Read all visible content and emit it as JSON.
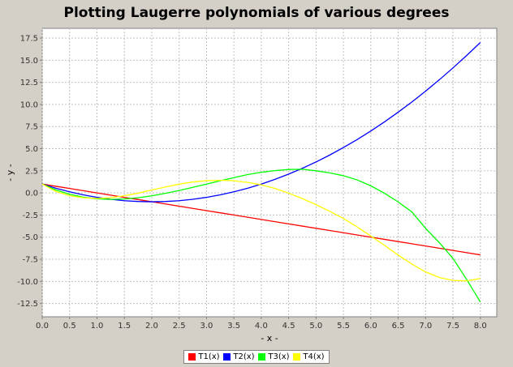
{
  "chart_data": {
    "type": "line",
    "title": "Plotting Laugerre polynomials of various degrees",
    "xlabel": "- x -",
    "ylabel": "- y -",
    "xlim": [
      0.0,
      8.3
    ],
    "ylim": [
      -14.0,
      18.6
    ],
    "x_ticks": [
      "0.0",
      "0.5",
      "1.0",
      "1.5",
      "2.0",
      "2.5",
      "3.0",
      "3.5",
      "4.0",
      "4.5",
      "5.0",
      "5.5",
      "6.0",
      "6.5",
      "7.0",
      "7.5",
      "8.0"
    ],
    "y_ticks": [
      "17.5",
      "15.0",
      "12.5",
      "10.0",
      "7.5",
      "5.0",
      "2.5",
      "0.0",
      "-2.5",
      "-5.0",
      "-7.5",
      "-10.0",
      "-12.5"
    ],
    "grid": true,
    "legend_position": "bottom",
    "x": [
      0.0,
      0.25,
      0.5,
      0.75,
      1.0,
      1.25,
      1.5,
      1.75,
      2.0,
      2.25,
      2.5,
      2.75,
      3.0,
      3.25,
      3.5,
      3.75,
      4.0,
      4.25,
      4.5,
      4.75,
      5.0,
      5.25,
      5.5,
      5.75,
      6.0,
      6.25,
      6.5,
      6.75,
      7.0,
      7.25,
      7.5,
      7.75,
      8.0
    ],
    "series": [
      {
        "name": "T1(x)",
        "color": "#ff0000",
        "values": [
          1.0,
          0.75,
          0.5,
          0.25,
          0.0,
          -0.25,
          -0.5,
          -0.75,
          -1.0,
          -1.25,
          -1.5,
          -1.75,
          -2.0,
          -2.25,
          -2.5,
          -2.75,
          -3.0,
          -3.25,
          -3.5,
          -3.75,
          -4.0,
          -4.25,
          -4.5,
          -4.75,
          -5.0,
          -5.25,
          -5.5,
          -5.75,
          -6.0,
          -6.25,
          -6.5,
          -6.75,
          -7.0
        ]
      },
      {
        "name": "T2(x)",
        "color": "#0000ff",
        "values": [
          1.0,
          0.53,
          0.13,
          -0.22,
          -0.5,
          -0.72,
          -0.88,
          -0.97,
          -1.0,
          -0.97,
          -0.88,
          -0.72,
          -0.5,
          -0.22,
          0.13,
          0.53,
          1.0,
          1.53,
          2.13,
          2.78,
          3.5,
          4.28,
          5.13,
          6.03,
          7.0,
          8.03,
          9.13,
          10.28,
          11.5,
          12.78,
          14.13,
          15.53,
          17.0
        ]
      },
      {
        "name": "T3(x)",
        "color": "#00ff00",
        "values": [
          1.0,
          0.33,
          -0.15,
          -0.48,
          -0.67,
          -0.73,
          -0.69,
          -0.55,
          -0.33,
          -0.05,
          0.27,
          0.63,
          1.0,
          1.37,
          1.73,
          2.07,
          2.33,
          2.52,
          2.65,
          2.68,
          2.5,
          2.27,
          1.94,
          1.47,
          0.8,
          -0.04,
          -1.02,
          -2.15,
          -4.0,
          -5.62,
          -7.4,
          -9.78,
          -12.33
        ]
      },
      {
        "name": "T4(x)",
        "color": "#ffff00",
        "values": [
          1.0,
          0.16,
          -0.31,
          -0.55,
          -0.63,
          -0.54,
          -0.32,
          -0.03,
          0.33,
          0.66,
          0.99,
          1.24,
          1.38,
          1.43,
          1.37,
          1.19,
          0.91,
          0.5,
          -0.03,
          -0.64,
          -1.33,
          -2.08,
          -2.89,
          -3.84,
          -4.87,
          -5.93,
          -7.02,
          -8.04,
          -8.93,
          -9.56,
          -9.89,
          -9.95,
          -9.67
        ]
      }
    ]
  }
}
